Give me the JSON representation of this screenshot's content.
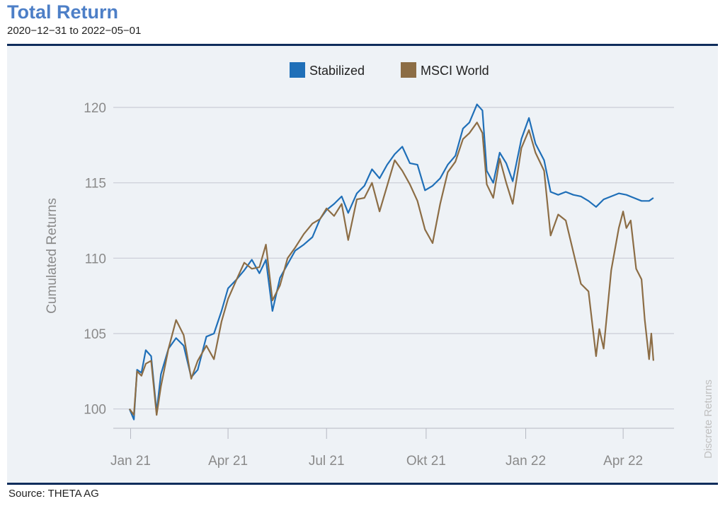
{
  "header": {
    "title": "Total Return",
    "subtitle": "2020−12−31 to 2022−05−01"
  },
  "footer": {
    "source": "Source: THETA AG"
  },
  "colors": {
    "stabilized": "#1f6fb8",
    "msci": "#8c6d45",
    "grid": "#c9ccd6",
    "panel": "#eef2f6",
    "rule": "#0f2d5c",
    "title": "#4d7fc7",
    "axis_text": "#8a8a8a"
  },
  "chart_data": {
    "type": "line",
    "title": "Total Return",
    "subtitle": "2020−12−31 to 2022−05−01",
    "ylabel": "Cumulated Returns",
    "y2label": "Discrete Returns",
    "ylim": [
      99,
      121.5
    ],
    "xlim": [
      "2020-12-16",
      "2022-05-18"
    ],
    "yticks": [
      100,
      105,
      110,
      115,
      120
    ],
    "xticks": [
      {
        "date": "2021-01-01",
        "label": "Jan 21"
      },
      {
        "date": "2021-04-01",
        "label": "Apr 21"
      },
      {
        "date": "2021-07-01",
        "label": "Jul 21"
      },
      {
        "date": "2021-10-01",
        "label": "Okt 21"
      },
      {
        "date": "2022-01-01",
        "label": "Jan 22"
      },
      {
        "date": "2022-04-01",
        "label": "Apr 22"
      }
    ],
    "legend": "top-center",
    "grid": true,
    "series": [
      {
        "name": "Stabilized",
        "color": "#1f6fb8",
        "points": [
          [
            "2020-12-31",
            100.0
          ],
          [
            "2021-01-04",
            99.3
          ],
          [
            "2021-01-07",
            102.6
          ],
          [
            "2021-01-11",
            102.4
          ],
          [
            "2021-01-15",
            103.9
          ],
          [
            "2021-01-20",
            103.5
          ],
          [
            "2021-01-25",
            99.8
          ],
          [
            "2021-01-29",
            102.3
          ],
          [
            "2021-02-05",
            104.0
          ],
          [
            "2021-02-12",
            104.7
          ],
          [
            "2021-02-19",
            104.2
          ],
          [
            "2021-02-26",
            102.1
          ],
          [
            "2021-03-04",
            102.6
          ],
          [
            "2021-03-12",
            104.8
          ],
          [
            "2021-03-19",
            105.0
          ],
          [
            "2021-03-26",
            106.5
          ],
          [
            "2021-04-01",
            108.0
          ],
          [
            "2021-04-09",
            108.6
          ],
          [
            "2021-04-16",
            109.2
          ],
          [
            "2021-04-23",
            109.9
          ],
          [
            "2021-04-30",
            109.0
          ],
          [
            "2021-05-06",
            109.9
          ],
          [
            "2021-05-12",
            106.5
          ],
          [
            "2021-05-19",
            108.7
          ],
          [
            "2021-05-26",
            109.6
          ],
          [
            "2021-06-02",
            110.5
          ],
          [
            "2021-06-10",
            110.9
          ],
          [
            "2021-06-18",
            111.4
          ],
          [
            "2021-06-25",
            112.6
          ],
          [
            "2021-07-01",
            113.2
          ],
          [
            "2021-07-08",
            113.6
          ],
          [
            "2021-07-15",
            114.1
          ],
          [
            "2021-07-21",
            113.0
          ],
          [
            "2021-07-29",
            114.3
          ],
          [
            "2021-08-05",
            114.8
          ],
          [
            "2021-08-12",
            115.9
          ],
          [
            "2021-08-19",
            115.3
          ],
          [
            "2021-08-26",
            116.2
          ],
          [
            "2021-09-02",
            116.9
          ],
          [
            "2021-09-09",
            117.4
          ],
          [
            "2021-09-16",
            116.3
          ],
          [
            "2021-09-23",
            116.2
          ],
          [
            "2021-09-30",
            114.5
          ],
          [
            "2021-10-07",
            114.8
          ],
          [
            "2021-10-14",
            115.3
          ],
          [
            "2021-10-21",
            116.2
          ],
          [
            "2021-10-28",
            116.8
          ],
          [
            "2021-11-04",
            118.6
          ],
          [
            "2021-11-10",
            119.0
          ],
          [
            "2021-11-17",
            120.2
          ],
          [
            "2021-11-22",
            119.8
          ],
          [
            "2021-11-26",
            115.8
          ],
          [
            "2021-12-02",
            115.0
          ],
          [
            "2021-12-08",
            117.0
          ],
          [
            "2021-12-14",
            116.3
          ],
          [
            "2021-12-20",
            115.1
          ],
          [
            "2021-12-28",
            117.9
          ],
          [
            "2022-01-04",
            119.3
          ],
          [
            "2022-01-10",
            117.6
          ],
          [
            "2022-01-18",
            116.5
          ],
          [
            "2022-01-24",
            114.4
          ],
          [
            "2022-01-31",
            114.2
          ],
          [
            "2022-02-07",
            114.4
          ],
          [
            "2022-02-14",
            114.2
          ],
          [
            "2022-02-21",
            114.1
          ],
          [
            "2022-02-28",
            113.8
          ],
          [
            "2022-03-07",
            113.4
          ],
          [
            "2022-03-14",
            113.9
          ],
          [
            "2022-03-21",
            114.1
          ],
          [
            "2022-03-28",
            114.3
          ],
          [
            "2022-04-04",
            114.2
          ],
          [
            "2022-04-11",
            114.0
          ],
          [
            "2022-04-18",
            113.8
          ],
          [
            "2022-04-25",
            113.8
          ],
          [
            "2022-04-29",
            114.0
          ]
        ]
      },
      {
        "name": "MSCI World",
        "color": "#8c6d45",
        "points": [
          [
            "2020-12-31",
            100.0
          ],
          [
            "2021-01-04",
            99.6
          ],
          [
            "2021-01-07",
            102.5
          ],
          [
            "2021-01-11",
            102.2
          ],
          [
            "2021-01-15",
            103.0
          ],
          [
            "2021-01-20",
            103.2
          ],
          [
            "2021-01-25",
            99.6
          ],
          [
            "2021-01-29",
            101.5
          ],
          [
            "2021-02-05",
            104.0
          ],
          [
            "2021-02-12",
            105.9
          ],
          [
            "2021-02-19",
            104.9
          ],
          [
            "2021-02-26",
            102.0
          ],
          [
            "2021-03-04",
            103.2
          ],
          [
            "2021-03-12",
            104.2
          ],
          [
            "2021-03-19",
            103.3
          ],
          [
            "2021-03-26",
            105.8
          ],
          [
            "2021-04-01",
            107.3
          ],
          [
            "2021-04-09",
            108.6
          ],
          [
            "2021-04-16",
            109.7
          ],
          [
            "2021-04-23",
            109.3
          ],
          [
            "2021-04-30",
            109.4
          ],
          [
            "2021-05-06",
            110.9
          ],
          [
            "2021-05-12",
            107.2
          ],
          [
            "2021-05-19",
            108.2
          ],
          [
            "2021-05-26",
            110.0
          ],
          [
            "2021-06-02",
            110.7
          ],
          [
            "2021-06-10",
            111.6
          ],
          [
            "2021-06-18",
            112.3
          ],
          [
            "2021-06-25",
            112.6
          ],
          [
            "2021-07-01",
            113.3
          ],
          [
            "2021-07-08",
            112.8
          ],
          [
            "2021-07-15",
            113.6
          ],
          [
            "2021-07-21",
            111.2
          ],
          [
            "2021-07-29",
            113.9
          ],
          [
            "2021-08-05",
            114.0
          ],
          [
            "2021-08-12",
            115.0
          ],
          [
            "2021-08-19",
            113.1
          ],
          [
            "2021-08-26",
            114.8
          ],
          [
            "2021-09-02",
            116.5
          ],
          [
            "2021-09-09",
            115.8
          ],
          [
            "2021-09-16",
            114.9
          ],
          [
            "2021-09-23",
            113.8
          ],
          [
            "2021-09-30",
            111.9
          ],
          [
            "2021-10-07",
            111.0
          ],
          [
            "2021-10-14",
            113.6
          ],
          [
            "2021-10-21",
            115.7
          ],
          [
            "2021-10-28",
            116.4
          ],
          [
            "2021-11-04",
            117.9
          ],
          [
            "2021-11-10",
            118.3
          ],
          [
            "2021-11-17",
            119.0
          ],
          [
            "2021-11-22",
            118.3
          ],
          [
            "2021-11-26",
            114.9
          ],
          [
            "2021-12-02",
            114.0
          ],
          [
            "2021-12-08",
            116.6
          ],
          [
            "2021-12-14",
            115.0
          ],
          [
            "2021-12-20",
            113.6
          ],
          [
            "2021-12-28",
            117.3
          ],
          [
            "2022-01-04",
            118.5
          ],
          [
            "2022-01-10",
            117.0
          ],
          [
            "2022-01-18",
            115.8
          ],
          [
            "2022-01-24",
            111.5
          ],
          [
            "2022-01-31",
            112.9
          ],
          [
            "2022-02-07",
            112.5
          ],
          [
            "2022-02-14",
            110.4
          ],
          [
            "2022-02-21",
            108.3
          ],
          [
            "2022-02-28",
            107.8
          ],
          [
            "2022-03-07",
            103.5
          ],
          [
            "2022-03-10",
            105.3
          ],
          [
            "2022-03-14",
            104.0
          ],
          [
            "2022-03-21",
            109.2
          ],
          [
            "2022-03-28",
            112.0
          ],
          [
            "2022-04-01",
            113.1
          ],
          [
            "2022-04-04",
            112.0
          ],
          [
            "2022-04-08",
            112.5
          ],
          [
            "2022-04-13",
            109.3
          ],
          [
            "2022-04-18",
            108.6
          ],
          [
            "2022-04-21",
            105.9
          ],
          [
            "2022-04-25",
            103.3
          ],
          [
            "2022-04-27",
            105.0
          ],
          [
            "2022-04-29",
            103.2
          ]
        ]
      }
    ]
  }
}
